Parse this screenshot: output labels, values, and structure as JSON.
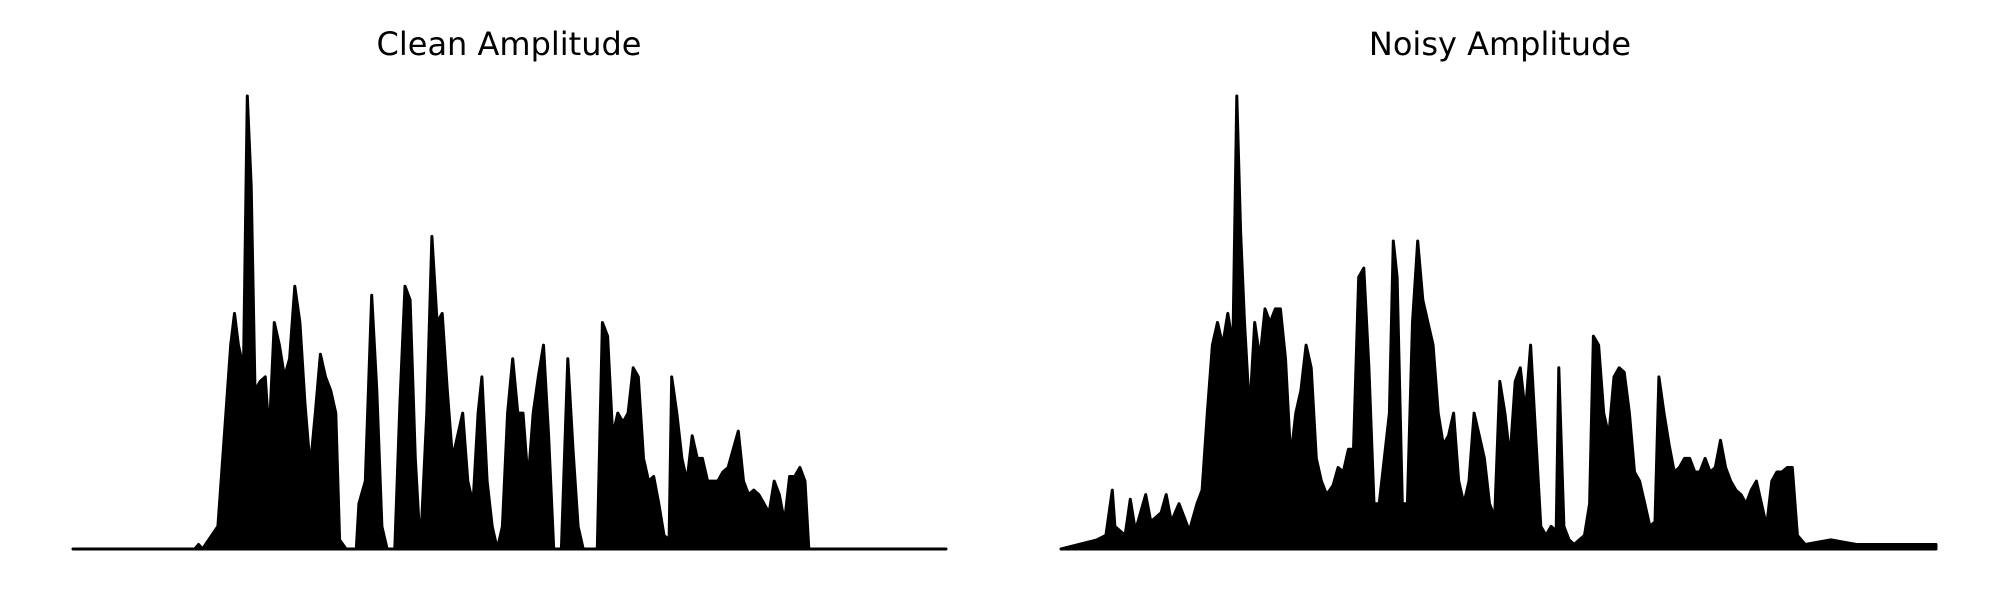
{
  "chart_data": [
    {
      "type": "area",
      "title": "Clean Amplitude",
      "color": "#000000",
      "xlim": [
        0,
        681
      ],
      "ylim": [
        0,
        100
      ],
      "x": [
        0,
        95,
        98,
        101,
        113,
        118,
        123,
        126,
        129,
        133,
        136,
        139,
        142,
        146,
        150,
        153,
        157,
        161,
        165,
        169,
        173,
        177,
        181,
        185,
        189,
        193,
        197,
        201,
        205,
        208,
        213,
        221,
        223,
        228,
        233,
        237,
        241,
        245,
        251,
        255,
        259,
        263,
        267,
        271,
        276,
        280,
        284,
        288,
        292,
        296,
        300,
        304,
        308,
        312,
        316,
        319,
        323,
        327,
        331,
        335,
        339,
        343,
        347,
        351,
        355,
        359,
        363,
        367,
        371,
        375,
        381,
        386,
        390,
        394,
        398,
        409,
        413,
        417,
        421,
        425,
        429,
        433,
        437,
        441,
        445,
        449,
        453,
        457,
        461,
        465,
        467,
        471,
        475,
        479,
        483,
        487,
        491,
        495,
        499,
        503,
        507,
        511,
        515,
        519,
        523,
        527,
        531,
        535,
        539,
        543,
        547,
        551,
        555,
        559,
        563,
        567,
        571,
        574,
        681
      ],
      "values": [
        0,
        0,
        1,
        0,
        5,
        25,
        45,
        52,
        45,
        40,
        100,
        80,
        35,
        37,
        38,
        25,
        50,
        45,
        38,
        42,
        58,
        50,
        32,
        18,
        30,
        43,
        38,
        35,
        30,
        2,
        0,
        0,
        10,
        15,
        56,
        35,
        5,
        0,
        0,
        32,
        58,
        55,
        20,
        0,
        30,
        69,
        50,
        52,
        35,
        20,
        25,
        30,
        15,
        10,
        30,
        38,
        15,
        5,
        0,
        5,
        30,
        42,
        30,
        30,
        15,
        30,
        38,
        45,
        25,
        0,
        0,
        42,
        22,
        5,
        0,
        0,
        50,
        47,
        25,
        30,
        28,
        30,
        40,
        38,
        20,
        15,
        16,
        10,
        3,
        2,
        38,
        30,
        20,
        15,
        25,
        20,
        20,
        15,
        15,
        15,
        17,
        18,
        22,
        26,
        15,
        12,
        13,
        12,
        10,
        8,
        15,
        12,
        6,
        16,
        16,
        18,
        15,
        0,
        0
      ]
    },
    {
      "type": "area",
      "title": "Noisy Amplitude",
      "color": "#000000",
      "xlim": [
        0,
        682
      ],
      "ylim": [
        0,
        100
      ],
      "x": [
        0,
        28,
        35,
        40,
        42,
        50,
        54,
        58,
        66,
        70,
        78,
        82,
        86,
        92,
        96,
        100,
        106,
        110,
        114,
        118,
        122,
        126,
        130,
        134,
        137,
        140,
        143,
        147,
        151,
        155,
        159,
        163,
        167,
        171,
        175,
        179,
        183,
        187,
        191,
        195,
        199,
        203,
        207,
        212,
        216,
        220,
        224,
        228,
        232,
        236,
        240,
        244,
        248,
        252,
        256,
        259,
        262,
        266,
        270,
        274,
        278,
        282,
        286,
        290,
        294,
        298,
        302,
        306,
        310,
        314,
        318,
        322,
        326,
        330,
        334,
        338,
        342,
        346,
        350,
        354,
        358,
        362,
        366,
        370,
        374,
        378,
        382,
        386,
        388,
        392,
        396,
        400,
        404,
        408,
        412,
        415,
        419,
        423,
        427,
        431,
        435,
        439,
        443,
        447,
        451,
        455,
        459,
        463,
        466,
        470,
        474,
        478,
        482,
        486,
        490,
        494,
        498,
        502,
        506,
        510,
        514,
        518,
        522,
        526,
        530,
        534,
        538,
        542,
        546,
        550,
        554,
        558,
        562,
        566,
        570,
        574,
        580,
        600,
        620,
        640,
        682
      ],
      "values": [
        0,
        2,
        3,
        13,
        5,
        3,
        11,
        4,
        12,
        6,
        8,
        12,
        6,
        10,
        7,
        4,
        10,
        13,
        30,
        45,
        50,
        45,
        52,
        45,
        100,
        70,
        50,
        30,
        50,
        42,
        53,
        50,
        53,
        53,
        42,
        20,
        30,
        35,
        45,
        40,
        20,
        15,
        12,
        14,
        18,
        17,
        22,
        22,
        60,
        62,
        40,
        10,
        10,
        20,
        30,
        68,
        60,
        10,
        10,
        50,
        68,
        55,
        50,
        45,
        30,
        23,
        25,
        30,
        15,
        10,
        15,
        30,
        25,
        20,
        10,
        7,
        37,
        30,
        20,
        37,
        40,
        30,
        45,
        25,
        5,
        3,
        5,
        4,
        40,
        5,
        2,
        1,
        2,
        3,
        10,
        47,
        45,
        30,
        25,
        38,
        40,
        39,
        30,
        17,
        15,
        10,
        5,
        6,
        38,
        30,
        23,
        17,
        18,
        20,
        20,
        17,
        17,
        20,
        17,
        18,
        24,
        18,
        15,
        13,
        12,
        10,
        13,
        15,
        10,
        5,
        15,
        17,
        17,
        18,
        18,
        3,
        1,
        2,
        1,
        1,
        1
      ]
    }
  ]
}
